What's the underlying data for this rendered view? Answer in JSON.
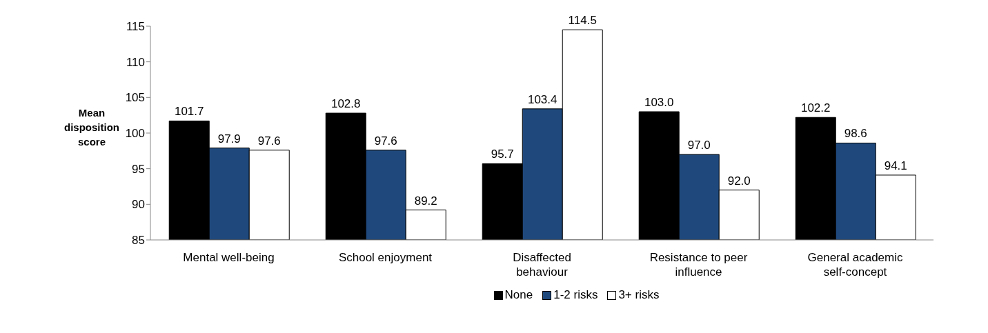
{
  "chart_data": {
    "type": "bar",
    "ylabel": "Mean disposition score",
    "categories": [
      "Mental well-being",
      "School enjoyment",
      "Disaffected behaviour",
      "Resistance to peer influence",
      "General academic self-concept"
    ],
    "series": [
      {
        "name": "None",
        "color": "#000000",
        "values": [
          101.7,
          102.8,
          95.7,
          103.0,
          102.2
        ],
        "value_labels": [
          "101.7",
          "102.8",
          "95.7",
          "103.0",
          "102.2"
        ]
      },
      {
        "name": "1-2 risks",
        "color": "#1f497d",
        "values": [
          97.9,
          97.6,
          103.4,
          97.0,
          98.6
        ],
        "value_labels": [
          "97.9",
          "97.6",
          "103.4",
          "97.0",
          "98.6"
        ]
      },
      {
        "name": "3+ risks",
        "color": "#ffffff",
        "values": [
          97.6,
          89.2,
          114.5,
          92.0,
          94.1
        ],
        "value_labels": [
          "97.6",
          "89.2",
          "114.5",
          "92.0",
          "94.1"
        ]
      }
    ],
    "ylim": [
      85,
      115
    ],
    "yticks": [
      85,
      90,
      95,
      100,
      105,
      110,
      115
    ],
    "grid": false,
    "legend": "bottom"
  }
}
